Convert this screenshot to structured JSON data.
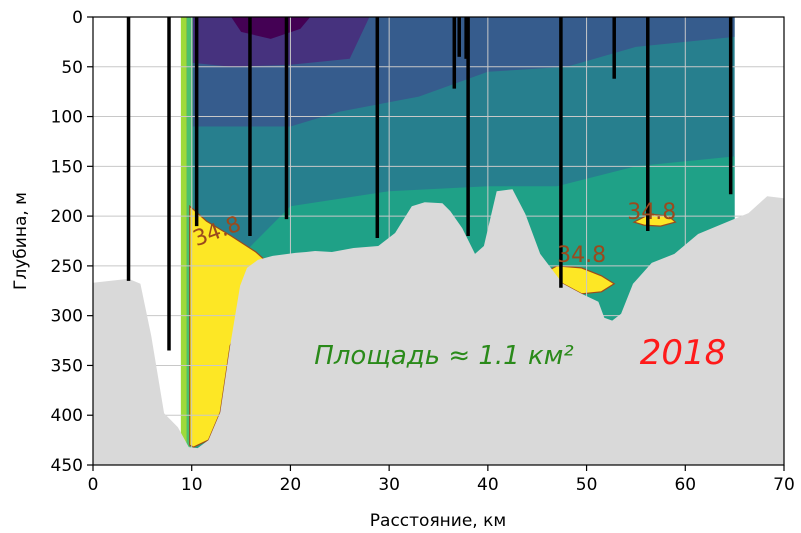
{
  "chart_data": {
    "type": "contour",
    "xlabel": "Расстояние, км",
    "ylabel": "Глубина, м",
    "xlim": [
      0,
      70
    ],
    "ylim": [
      450,
      0
    ],
    "xticks": [
      0,
      10,
      20,
      30,
      40,
      50,
      60,
      70
    ],
    "yticks": [
      0,
      50,
      100,
      150,
      200,
      250,
      300,
      350,
      400,
      450
    ],
    "grid": true,
    "contour_label": "34.8",
    "contour_labels": [
      {
        "x": 12.8,
        "y": 222
      },
      {
        "x": 56.6,
        "y": 203
      },
      {
        "x": 49.5,
        "y": 246
      }
    ],
    "annotations": {
      "area": "Площадь ≈ 1.1 км²",
      "year": "2018"
    },
    "stations": [
      {
        "x": 3.6,
        "depth": 265
      },
      {
        "x": 7.7,
        "depth": 335
      },
      {
        "x": 10.5,
        "depth": 210
      },
      {
        "x": 15.9,
        "depth": 220
      },
      {
        "x": 19.6,
        "depth": 203
      },
      {
        "x": 28.8,
        "depth": 222
      },
      {
        "x": 36.6,
        "depth": 72
      },
      {
        "x": 37.1,
        "depth": 40
      },
      {
        "x": 37.8,
        "depth": 42
      },
      {
        "x": 38.0,
        "depth": 220
      },
      {
        "x": 47.4,
        "depth": 272
      },
      {
        "x": 52.8,
        "depth": 62
      },
      {
        "x": 56.2,
        "depth": 215
      },
      {
        "x": 64.6,
        "depth": 178
      }
    ],
    "bottom_profile": [
      [
        0,
        267
      ],
      [
        3.6,
        263
      ],
      [
        4.8,
        268
      ],
      [
        5.9,
        320
      ],
      [
        7.2,
        398
      ],
      [
        8.6,
        412
      ],
      [
        9.7,
        432
      ],
      [
        10.6,
        433
      ],
      [
        11.7,
        425
      ],
      [
        12.9,
        397
      ],
      [
        13.9,
        330
      ],
      [
        14.9,
        270
      ],
      [
        15.6,
        252
      ],
      [
        16.7,
        244
      ],
      [
        18.2,
        240
      ],
      [
        20.5,
        237
      ],
      [
        21.6,
        236
      ],
      [
        22.5,
        235
      ],
      [
        24.2,
        236
      ],
      [
        26.4,
        232
      ],
      [
        28.9,
        230
      ],
      [
        30.6,
        217
      ],
      [
        32.3,
        190
      ],
      [
        33.6,
        186
      ],
      [
        35.4,
        187
      ],
      [
        36.2,
        195
      ],
      [
        37.4,
        212
      ],
      [
        38.7,
        238
      ],
      [
        39.6,
        230
      ],
      [
        40.9,
        175
      ],
      [
        42.5,
        173
      ],
      [
        43.8,
        198
      ],
      [
        45.3,
        238
      ],
      [
        47.6,
        268
      ],
      [
        49.5,
        278
      ],
      [
        51.2,
        286
      ],
      [
        51.8,
        302
      ],
      [
        52.6,
        305
      ],
      [
        53.5,
        298
      ],
      [
        54.7,
        268
      ],
      [
        56.6,
        247
      ],
      [
        58.9,
        238
      ],
      [
        61.3,
        218
      ],
      [
        64.2,
        206
      ],
      [
        66.4,
        197
      ],
      [
        68.3,
        180
      ],
      [
        70,
        182
      ]
    ],
    "colors": {
      "contour_levels": [
        "#440154",
        "#46327e",
        "#365c8d",
        "#277f8e",
        "#1fa187",
        "#4ac16d",
        "#9fda3a",
        "#fde725"
      ],
      "bottom": "#d9d9d9",
      "grid": "#c8c8c8",
      "contour_line": "#9a4a1d",
      "station": "#000000",
      "area_text": "#2a8a1a",
      "year_text": "#ff1a1a"
    }
  }
}
